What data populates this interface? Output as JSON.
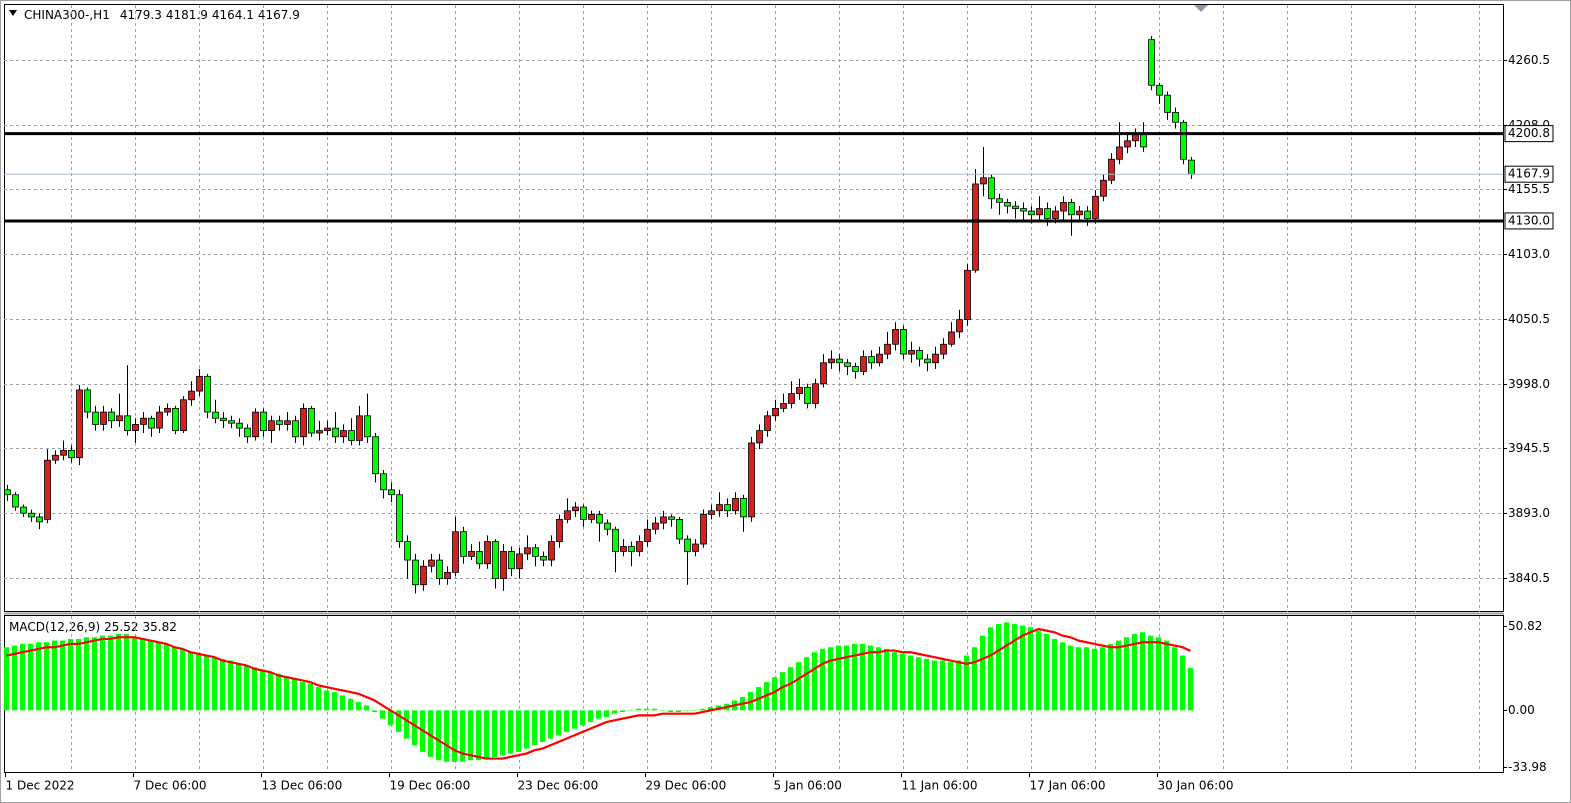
{
  "chart_data": {
    "type": "candlestick",
    "symbol": "CHINA300-,H1",
    "categories": [
      "1 Dec 2022",
      null,
      null,
      null,
      null,
      null,
      null,
      null,
      null,
      null,
      null,
      null,
      null,
      null,
      null,
      null,
      "7 Dec 06:00",
      null,
      null,
      null,
      null,
      null,
      null,
      null,
      null,
      null,
      null,
      null,
      null,
      null,
      null,
      null,
      "13 Dec 06:00",
      null,
      null,
      null,
      null,
      null,
      null,
      null,
      null,
      null,
      null,
      null,
      null,
      null,
      null,
      null,
      "19 Dec 06:00",
      null,
      null,
      null,
      null,
      null,
      null,
      null,
      null,
      null,
      null,
      null,
      null,
      null,
      null,
      null,
      "23 Dec 06:00",
      null,
      null,
      null,
      null,
      null,
      null,
      null,
      null,
      null,
      null,
      null,
      null,
      null,
      null,
      null,
      "29 Dec 06:00",
      null,
      null,
      null,
      null,
      null,
      null,
      null,
      null,
      null,
      null,
      null,
      null,
      null,
      null,
      null,
      "5 Jan 06:00",
      null,
      null,
      null,
      null,
      null,
      null,
      null,
      null,
      null,
      null,
      null,
      null,
      null,
      null,
      null,
      "11 Jan 06:00",
      null,
      null,
      null,
      null,
      null,
      null,
      null,
      null,
      null,
      null,
      null,
      null,
      null,
      null,
      null,
      "17 Jan 06:00",
      null,
      null,
      null,
      null,
      null,
      null,
      null,
      null,
      null,
      null,
      null,
      null,
      null,
      null,
      null,
      "30 Jan 06:00",
      null,
      null,
      null,
      null
    ],
    "ohlc": [
      [
        3912,
        3916,
        3903,
        3908
      ],
      [
        3908,
        3910,
        3895,
        3898
      ],
      [
        3898,
        3900,
        3890,
        3893
      ],
      [
        3893,
        3896,
        3886,
        3890
      ],
      [
        3890,
        3893,
        3880,
        3886
      ],
      [
        3888,
        3945,
        3885,
        3936
      ],
      [
        3936,
        3944,
        3933,
        3940
      ],
      [
        3940,
        3952,
        3936,
        3944
      ],
      [
        3944,
        3948,
        3934,
        3938
      ],
      [
        3938,
        3997,
        3932,
        3993
      ],
      [
        3993,
        3995,
        3970,
        3975
      ],
      [
        3975,
        3980,
        3960,
        3965
      ],
      [
        3965,
        3980,
        3960,
        3975
      ],
      [
        3975,
        3978,
        3962,
        3968
      ],
      [
        3968,
        3990,
        3963,
        3972
      ],
      [
        3972,
        4013,
        3956,
        3960
      ],
      [
        3960,
        3970,
        3950,
        3965
      ],
      [
        3965,
        3975,
        3958,
        3970
      ],
      [
        3970,
        3972,
        3955,
        3962
      ],
      [
        3962,
        3980,
        3958,
        3975
      ],
      [
        3975,
        3982,
        3972,
        3978
      ],
      [
        3978,
        3980,
        3957,
        3960
      ],
      [
        3960,
        3988,
        3958,
        3985
      ],
      [
        3985,
        4000,
        3980,
        3992
      ],
      [
        3992,
        4010,
        3988,
        4004
      ],
      [
        4004,
        4006,
        3970,
        3975
      ],
      [
        3975,
        3985,
        3966,
        3970
      ],
      [
        3970,
        3975,
        3962,
        3968
      ],
      [
        3968,
        3972,
        3962,
        3966
      ],
      [
        3966,
        3970,
        3955,
        3962
      ],
      [
        3962,
        3965,
        3950,
        3955
      ],
      [
        3955,
        3978,
        3952,
        3975
      ],
      [
        3975,
        3978,
        3955,
        3960
      ],
      [
        3960,
        3972,
        3950,
        3968
      ],
      [
        3968,
        3972,
        3960,
        3965
      ],
      [
        3965,
        3975,
        3960,
        3968
      ],
      [
        3968,
        3972,
        3950,
        3955
      ],
      [
        3955,
        3982,
        3948,
        3978
      ],
      [
        3978,
        3980,
        3955,
        3958
      ],
      [
        3958,
        3968,
        3952,
        3960
      ],
      [
        3960,
        3968,
        3956,
        3962
      ],
      [
        3962,
        3975,
        3950,
        3955
      ],
      [
        3955,
        3965,
        3950,
        3960
      ],
      [
        3960,
        3970,
        3948,
        3952
      ],
      [
        3952,
        3980,
        3948,
        3972
      ],
      [
        3972,
        3990,
        3950,
        3955
      ],
      [
        3955,
        3958,
        3918,
        3925
      ],
      [
        3925,
        3928,
        3905,
        3912
      ],
      [
        3912,
        3918,
        3902,
        3908
      ],
      [
        3908,
        3912,
        3865,
        3870
      ],
      [
        3870,
        3875,
        3840,
        3855
      ],
      [
        3855,
        3860,
        3828,
        3835
      ],
      [
        3835,
        3855,
        3830,
        3850
      ],
      [
        3850,
        3860,
        3845,
        3855
      ],
      [
        3855,
        3860,
        3835,
        3840
      ],
      [
        3840,
        3850,
        3835,
        3845
      ],
      [
        3845,
        3890,
        3842,
        3878
      ],
      [
        3878,
        3882,
        3852,
        3858
      ],
      [
        3858,
        3868,
        3855,
        3862
      ],
      [
        3862,
        3870,
        3848,
        3852
      ],
      [
        3852,
        3875,
        3848,
        3870
      ],
      [
        3870,
        3872,
        3832,
        3840
      ],
      [
        3840,
        3868,
        3830,
        3862
      ],
      [
        3862,
        3866,
        3842,
        3848
      ],
      [
        3848,
        3865,
        3840,
        3860
      ],
      [
        3860,
        3875,
        3855,
        3865
      ],
      [
        3865,
        3868,
        3850,
        3858
      ],
      [
        3858,
        3862,
        3850,
        3855
      ],
      [
        3855,
        3875,
        3850,
        3870
      ],
      [
        3870,
        3892,
        3865,
        3888
      ],
      [
        3888,
        3905,
        3885,
        3895
      ],
      [
        3895,
        3902,
        3890,
        3898
      ],
      [
        3898,
        3900,
        3882,
        3888
      ],
      [
        3888,
        3895,
        3885,
        3892
      ],
      [
        3892,
        3895,
        3870,
        3885
      ],
      [
        3885,
        3888,
        3875,
        3880
      ],
      [
        3880,
        3882,
        3845,
        3862
      ],
      [
        3862,
        3872,
        3858,
        3866
      ],
      [
        3866,
        3870,
        3850,
        3862
      ],
      [
        3862,
        3875,
        3858,
        3870
      ],
      [
        3870,
        3888,
        3866,
        3880
      ],
      [
        3880,
        3890,
        3876,
        3885
      ],
      [
        3885,
        3895,
        3880,
        3890
      ],
      [
        3890,
        3892,
        3882,
        3888
      ],
      [
        3888,
        3890,
        3868,
        3872
      ],
      [
        3872,
        3875,
        3835,
        3862
      ],
      [
        3862,
        3872,
        3858,
        3868
      ],
      [
        3868,
        3896,
        3865,
        3892
      ],
      [
        3892,
        3900,
        3888,
        3895
      ],
      [
        3895,
        3910,
        3890,
        3900
      ],
      [
        3900,
        3905,
        3890,
        3895
      ],
      [
        3895,
        3910,
        3892,
        3905
      ],
      [
        3905,
        3908,
        3878,
        3890
      ],
      [
        3890,
        3955,
        3886,
        3950
      ],
      [
        3950,
        3965,
        3945,
        3960
      ],
      [
        3960,
        3976,
        3955,
        3972
      ],
      [
        3972,
        3985,
        3968,
        3978
      ],
      [
        3978,
        3990,
        3975,
        3982
      ],
      [
        3982,
        4000,
        3978,
        3990
      ],
      [
        3990,
        4002,
        3985,
        3995
      ],
      [
        3995,
        3998,
        3978,
        3982
      ],
      [
        3982,
        4002,
        3978,
        3998
      ],
      [
        3998,
        4022,
        3995,
        4015
      ],
      [
        4015,
        4025,
        4010,
        4018
      ],
      [
        4018,
        4022,
        4008,
        4015
      ],
      [
        4015,
        4018,
        4005,
        4012
      ],
      [
        4012,
        4015,
        4002,
        4008
      ],
      [
        4008,
        4025,
        4005,
        4020
      ],
      [
        4020,
        4025,
        4010,
        4015
      ],
      [
        4015,
        4028,
        4012,
        4022
      ],
      [
        4022,
        4040,
        4018,
        4030
      ],
      [
        4030,
        4048,
        4025,
        4042
      ],
      [
        4042,
        4045,
        4018,
        4022
      ],
      [
        4022,
        4032,
        4015,
        4025
      ],
      [
        4025,
        4028,
        4012,
        4018
      ],
      [
        4018,
        4022,
        4008,
        4015
      ],
      [
        4015,
        4028,
        4010,
        4022
      ],
      [
        4022,
        4035,
        4018,
        4030
      ],
      [
        4030,
        4048,
        4028,
        4040
      ],
      [
        4040,
        4058,
        4035,
        4050
      ],
      [
        4050,
        4095,
        4045,
        4090
      ],
      [
        4090,
        4172,
        4088,
        4160
      ],
      [
        4160,
        4190,
        4150,
        4165
      ],
      [
        4165,
        4168,
        4140,
        4148
      ],
      [
        4148,
        4152,
        4135,
        4145
      ],
      [
        4145,
        4148,
        4136,
        4142
      ],
      [
        4142,
        4146,
        4132,
        4140
      ],
      [
        4140,
        4145,
        4130,
        4138
      ],
      [
        4138,
        4142,
        4128,
        4135
      ],
      [
        4135,
        4150,
        4130,
        4140
      ],
      [
        4140,
        4145,
        4126,
        4132
      ],
      [
        4132,
        4142,
        4128,
        4138
      ],
      [
        4138,
        4150,
        4130,
        4145
      ],
      [
        4145,
        4148,
        4118,
        4135
      ],
      [
        4135,
        4142,
        4130,
        4138
      ],
      [
        4138,
        4142,
        4126,
        4132
      ],
      [
        4132,
        4155,
        4128,
        4150
      ],
      [
        4150,
        4168,
        4146,
        4163
      ],
      [
        4163,
        4185,
        4160,
        4180
      ],
      [
        4180,
        4210,
        4176,
        4190
      ],
      [
        4190,
        4200,
        4185,
        4195
      ],
      [
        4195,
        4205,
        4190,
        4200
      ],
      [
        4200,
        4210,
        4186,
        4190
      ],
      [
        4277,
        4280,
        4236,
        4240
      ],
      [
        4240,
        4242,
        4225,
        4232
      ],
      [
        4232,
        4235,
        4212,
        4218
      ],
      [
        4218,
        4222,
        4205,
        4210
      ],
      [
        4210,
        4212,
        4176,
        4180
      ],
      [
        4179.3,
        4181.9,
        4164.1,
        4167.9
      ]
    ],
    "up_color": "#d42020",
    "down_color": "#00ff00",
    "ylim": [
      3812.9,
      4305.1
    ],
    "yticks": [
      4260.5,
      {
        "value": 4208,
        "label": "4208.0"
      },
      4155.5,
      {
        "value": 4103,
        "label": "4103.0"
      },
      4050.5,
      {
        "value": 3998,
        "label": "3998.0"
      },
      3945.5,
      {
        "value": 3893,
        "label": "3893.0"
      },
      3840.5
    ],
    "levels": [
      4200.8,
      {
        "value": 4130,
        "label": "4130.0"
      }
    ],
    "grid": true,
    "indicator": {
      "type": "macd",
      "name": "MACD(12,26,9)",
      "histogram": {
        "color": "#00ff00",
        "values": [
          38,
          39,
          40,
          40,
          41,
          41,
          42,
          42,
          43,
          43,
          44,
          44,
          45,
          45,
          46,
          46,
          44,
          43,
          42,
          41,
          40,
          38,
          37,
          35,
          34,
          33,
          32,
          31,
          30,
          28,
          27,
          26,
          24,
          23,
          22,
          20,
          19,
          17,
          16,
          14,
          12,
          11,
          9,
          7,
          5,
          3,
          -1,
          -5,
          -9,
          -13,
          -17,
          -21,
          -25,
          -28,
          -30,
          -31,
          -31,
          -31,
          -30,
          -30,
          -29,
          -28,
          -27,
          -26,
          -25,
          -23,
          -21,
          -19,
          -17,
          -15,
          -13,
          -11,
          -9,
          -7,
          -5,
          -4,
          -2,
          -1,
          0,
          1,
          1,
          1,
          0,
          -1,
          -1,
          0,
          0,
          1,
          2,
          3,
          4,
          6,
          8,
          11,
          14,
          17,
          20,
          23,
          26,
          29,
          32,
          35,
          37,
          38,
          39,
          39,
          40,
          40,
          39,
          38,
          37,
          35,
          34,
          33,
          32,
          31,
          30,
          30,
          29,
          30,
          33,
          38,
          45,
          50,
          52,
          53,
          52,
          51,
          50,
          48,
          46,
          43,
          41,
          39,
          38,
          38,
          37,
          38,
          40,
          42,
          44,
          46,
          47,
          45,
          44,
          42,
          38,
          33,
          25.52
        ]
      },
      "signal": {
        "color": "#ff0000",
        "values": [
          33,
          34,
          35,
          36,
          37,
          38,
          38,
          39,
          40,
          40,
          41,
          42,
          43,
          43,
          44,
          44,
          44,
          43,
          42,
          41,
          40,
          38,
          37,
          35,
          34,
          33,
          32,
          30,
          29,
          28,
          27,
          25,
          24,
          23,
          21,
          20,
          19,
          18,
          17,
          15,
          14,
          13,
          12,
          11,
          10,
          8,
          6,
          3,
          0,
          -3,
          -6,
          -9,
          -12,
          -15,
          -18,
          -21,
          -24,
          -26,
          -27,
          -28,
          -29,
          -29,
          -29,
          -28,
          -27,
          -26,
          -24,
          -23,
          -21,
          -19,
          -17,
          -15,
          -13,
          -11,
          -9,
          -7,
          -6,
          -5,
          -4,
          -3,
          -3,
          -3,
          -2,
          -2,
          -2,
          -2,
          -2,
          -1,
          0,
          1,
          2,
          3,
          4,
          5,
          7,
          9,
          11,
          14,
          16,
          19,
          22,
          25,
          28,
          30,
          31,
          32,
          33,
          34,
          35,
          35,
          36,
          36,
          35,
          35,
          34,
          33,
          32,
          31,
          30,
          29,
          28,
          29,
          31,
          33,
          36,
          39,
          42,
          45,
          47,
          49,
          48,
          47,
          45,
          44,
          42,
          41,
          40,
          39,
          38,
          38,
          39,
          40,
          41,
          41,
          41,
          40,
          39,
          38,
          35.82
        ]
      },
      "ylim": [
        -37.1,
        56.8
      ],
      "yticks": [
        50.82,
        {
          "value": 0,
          "label": "0.00"
        },
        -33.98
      ]
    }
  }
}
